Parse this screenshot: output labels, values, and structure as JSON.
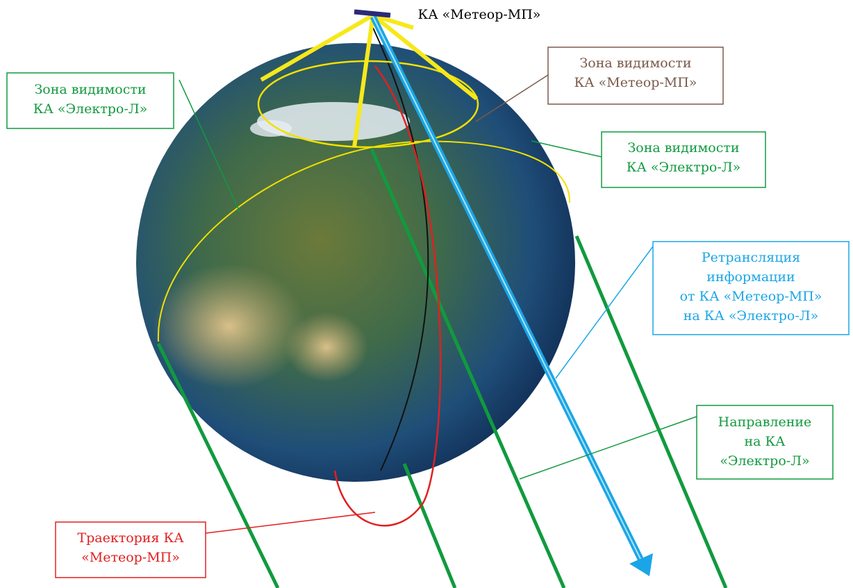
{
  "satellite_label": "КА «Метеор-МП»",
  "callouts": [
    {
      "lines": [
        "Зона видимости",
        "КА «Метеор-МП»"
      ]
    },
    {
      "lines": [
        "Зона видимости",
        "КА «Электро-Л»"
      ]
    },
    {
      "lines": [
        "Зона видимости",
        "КА «Электро-Л»"
      ]
    },
    {
      "lines": [
        "Ретрансляция",
        "информации",
        "от КА «Метеор-МП»",
        "на КА «Электро-Л»"
      ]
    },
    {
      "lines": [
        "Направление",
        "на КА",
        "«Электро-Л»"
      ]
    },
    {
      "lines": [
        "Траектория КА",
        "«Метеор-МП»"
      ]
    }
  ]
}
